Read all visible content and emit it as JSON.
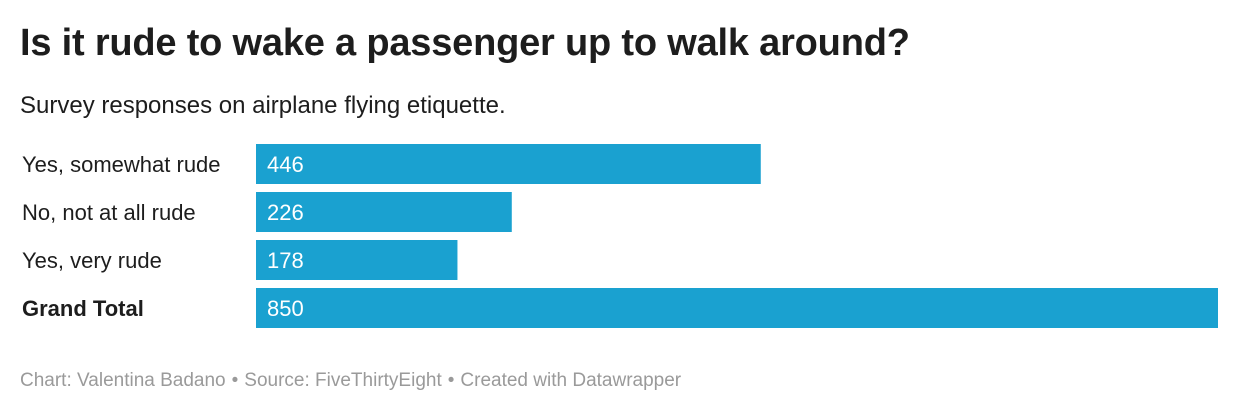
{
  "title": "Is it rude to wake a passenger up to walk around?",
  "subtitle": "Survey responses on airplane flying etiquette.",
  "chart_data": {
    "type": "bar",
    "orientation": "horizontal",
    "categories": [
      "Yes, somewhat rude",
      "No, not at all rude",
      "Yes, very rude",
      "Grand Total"
    ],
    "bold_categories": [
      "Grand Total"
    ],
    "values": [
      446,
      226,
      178,
      850
    ],
    "xlim": [
      0,
      850
    ],
    "grid": false,
    "bar_color": "#1aa1d0",
    "value_label_color": "#ffffff"
  },
  "footer": {
    "chart_credit": "Chart: Valentina Badano",
    "source": "Source: FiveThirtyEight",
    "tool": "Created with Datawrapper",
    "separator": "•"
  }
}
